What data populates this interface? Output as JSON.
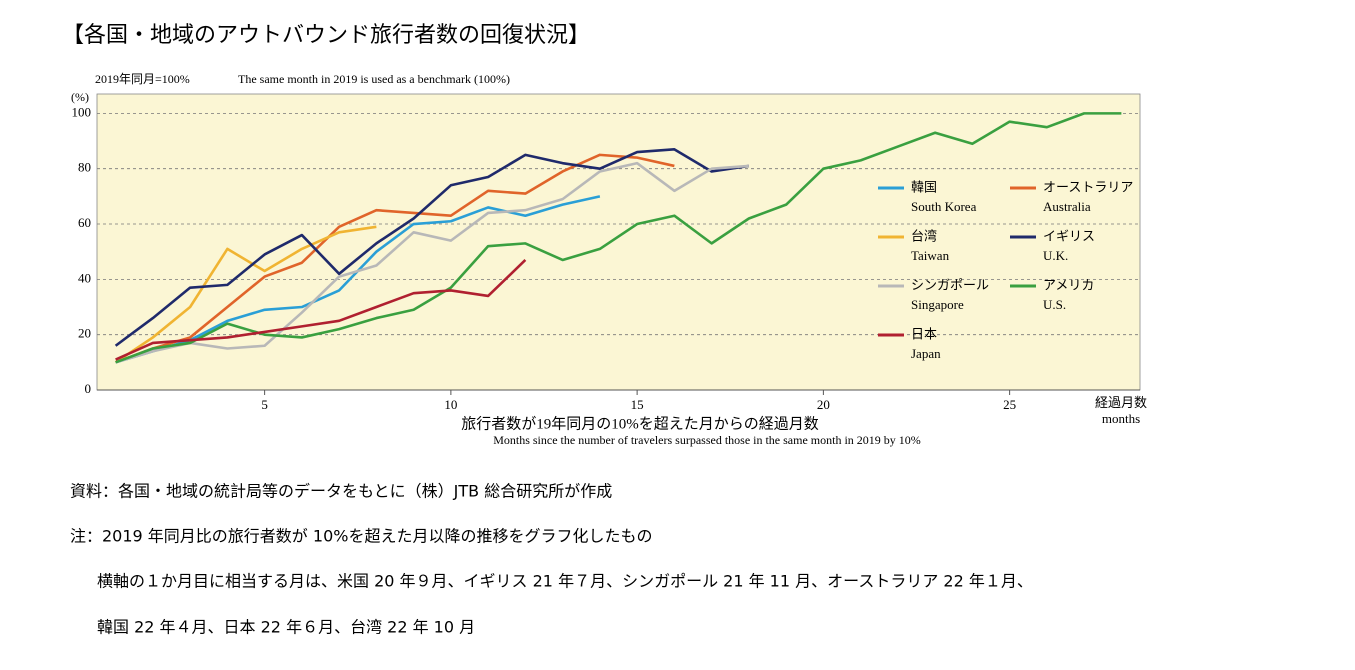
{
  "header": {
    "title": "【各国・地域のアウトバウンド旅行者数の回復状況】"
  },
  "chart_data": {
    "type": "line",
    "subtitle": "2019年同月=100%",
    "subtitle_en": "The same month in 2019 is used as a benchmark (100%)",
    "y_unit": "(%)",
    "xlabel": "旅行者数が19年同月の10%を超えた月からの経過月数",
    "xlabel_en": "Months since the number of travelers surpassed those in the same month in 2019 by 10%",
    "x_end_label": "経過月数",
    "x_end_label_en": "months",
    "x": [
      1,
      2,
      3,
      4,
      5,
      6,
      7,
      8,
      9,
      10,
      11,
      12,
      13,
      14,
      15,
      16,
      17,
      18,
      19,
      20,
      21,
      22,
      23,
      24,
      25,
      26,
      27,
      28
    ],
    "xlim": [
      0.5,
      28.5
    ],
    "ylim": [
      0,
      107
    ],
    "xticks": [
      5,
      10,
      15,
      20,
      25
    ],
    "yticks": [
      0,
      20,
      40,
      60,
      80,
      100
    ],
    "grid": true,
    "series": [
      {
        "name": "韓国",
        "name_en": "South Korea",
        "color": "#2a9fd6",
        "values": [
          10,
          14,
          18,
          25,
          29,
          30,
          36,
          50,
          60,
          61,
          66,
          63,
          67,
          70,
          null,
          null,
          null,
          null,
          null,
          null,
          null,
          null,
          null,
          null,
          null,
          null,
          null,
          null
        ]
      },
      {
        "name": "オーストラリア",
        "name_en": "Australia",
        "color": "#e0642a",
        "values": [
          10,
          15,
          19,
          30,
          41,
          46,
          59,
          65,
          64,
          63,
          72,
          71,
          79,
          85,
          84,
          81,
          null,
          null,
          null,
          null,
          null,
          null,
          null,
          null,
          null,
          null,
          null,
          null
        ]
      },
      {
        "name": "台湾",
        "name_en": "Taiwan",
        "color": "#f0b432",
        "values": [
          10,
          19,
          30,
          51,
          43,
          51,
          57,
          59,
          null,
          null,
          null,
          null,
          null,
          null,
          null,
          null,
          null,
          null,
          null,
          null,
          null,
          null,
          null,
          null,
          null,
          null,
          null,
          null
        ]
      },
      {
        "name": "イギリス",
        "name_en": "U.K.",
        "color": "#1f2a6b",
        "values": [
          16,
          26,
          37,
          38,
          49,
          56,
          42,
          53,
          62,
          74,
          77,
          85,
          82,
          80,
          86,
          87,
          79,
          81,
          null,
          null,
          null,
          null,
          null,
          null,
          null,
          null,
          null,
          null
        ]
      },
      {
        "name": "シンガポール",
        "name_en": "Singapore",
        "color": "#b8b8b8",
        "values": [
          10,
          14,
          17,
          15,
          16,
          28,
          41,
          45,
          57,
          54,
          64,
          65,
          69,
          79,
          82,
          72,
          80,
          81,
          null,
          null,
          null,
          null,
          null,
          null,
          null,
          null,
          null,
          null
        ]
      },
      {
        "name": "アメリカ",
        "name_en": "U.S.",
        "color": "#3aa040",
        "values": [
          10,
          15,
          17,
          24,
          20,
          19,
          22,
          26,
          29,
          37,
          52,
          53,
          47,
          51,
          60,
          63,
          53,
          62,
          67,
          80,
          83,
          88,
          93,
          89,
          97,
          95,
          100,
          100
        ]
      },
      {
        "name": "日本",
        "name_en": "Japan",
        "color": "#b02030",
        "values": [
          11,
          17,
          18,
          19,
          21,
          23,
          25,
          30,
          35,
          36,
          34,
          47,
          null,
          null,
          null,
          null,
          null,
          null,
          null,
          null,
          null,
          null,
          null,
          null,
          null,
          null,
          null,
          null
        ]
      }
    ]
  },
  "notes": {
    "source": "資料：各国・地域の統計局等のデータをもとに（株）JTB 総合研究所が作成",
    "note": "注：2019 年同月比の旅行者数が 10%を超えた月以降の推移をグラフ化したもの",
    "lines": [
      "横軸の１か月目に相当する月は、米国 20 年９月、イギリス 21 年７月、シンガポール 21 年 11 月、オーストラリア 22 年１月、",
      "韓国 22 年４月、日本 22 年６月、台湾 22 年 10 月"
    ]
  }
}
